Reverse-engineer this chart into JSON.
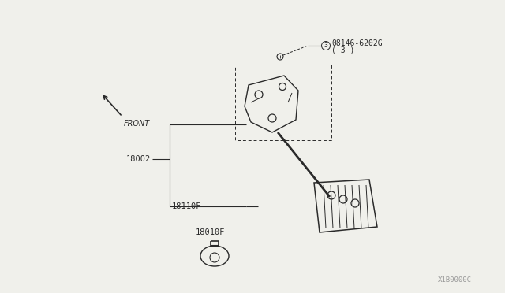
{
  "bg_color": "#f0f0eb",
  "line_color": "#2a2a2a",
  "watermark": "X1B0000C",
  "label_08146": "08146-6202G",
  "label_08146_sub": "( 3 )",
  "label_18002": "18002",
  "label_18110F": "18110F",
  "label_18010F": "18010F",
  "front_label": "FRONT",
  "fig_width": 6.4,
  "fig_height": 3.72,
  "dpi": 100
}
